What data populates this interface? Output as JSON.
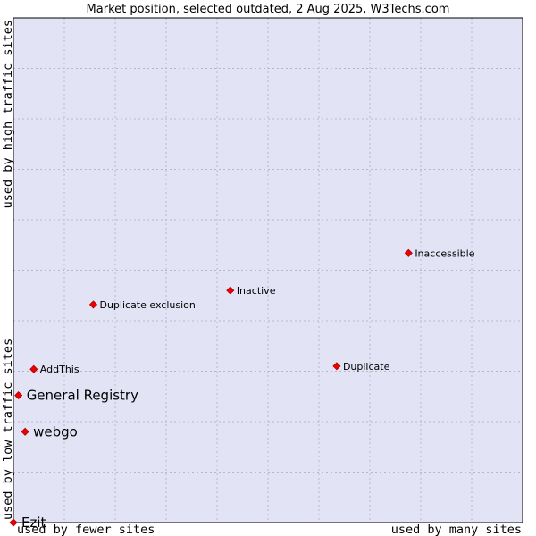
{
  "chart_data": {
    "type": "scatter",
    "title": "Market position, selected outdated, 2 Aug 2025, W3Techs.com",
    "xlabel_left": "used by fewer sites",
    "xlabel_right": "used by many sites",
    "ylabel_bottom": "used by low traffic sites",
    "ylabel_top": "used by high traffic sites",
    "xlim": [
      0,
      100
    ],
    "ylim": [
      0,
      100
    ],
    "grid": true,
    "colors": {
      "plot_background": "#e3e3f6",
      "grid": "#b8b8c8",
      "marker_fill": "#ee0000",
      "marker_stroke": "#b00000",
      "border": "#000000"
    },
    "points": [
      {
        "name": "Ezit",
        "x": 0.0,
        "y": 0.0,
        "label_size": "large"
      },
      {
        "name": "webgo",
        "x": 2.3,
        "y": 18.0,
        "label_size": "large"
      },
      {
        "name": "General Registry",
        "x": 1.0,
        "y": 25.2,
        "label_size": "large"
      },
      {
        "name": "AddThis",
        "x": 4.0,
        "y": 30.4,
        "label_size": "small"
      },
      {
        "name": "Duplicate exclusion",
        "x": 15.7,
        "y": 43.2,
        "label_size": "small"
      },
      {
        "name": "Inactive",
        "x": 42.6,
        "y": 46.0,
        "label_size": "small"
      },
      {
        "name": "Duplicate",
        "x": 63.5,
        "y": 31.0,
        "label_size": "small"
      },
      {
        "name": "Inaccessible",
        "x": 77.6,
        "y": 53.4,
        "label_size": "small"
      }
    ]
  }
}
